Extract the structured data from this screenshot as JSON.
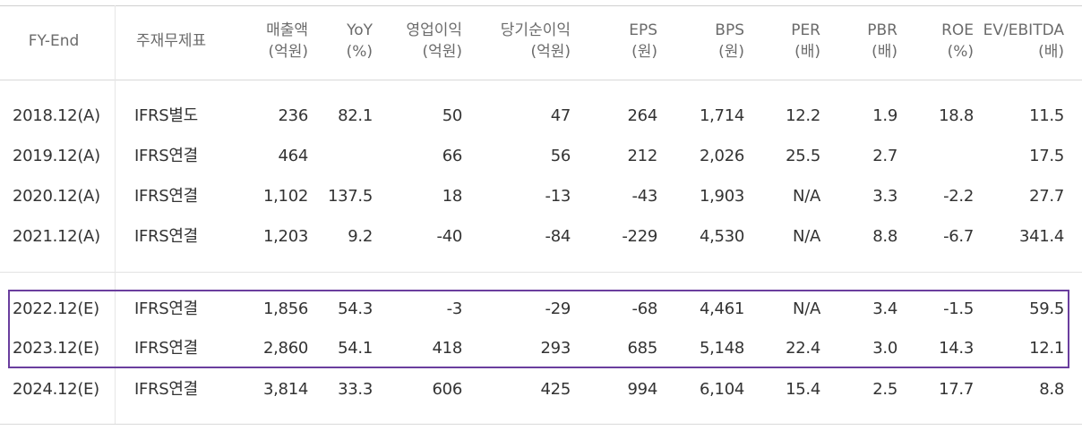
{
  "table": {
    "headers": [
      {
        "l1": "FY-End",
        "l2": ""
      },
      {
        "l1": "주재무제표",
        "l2": ""
      },
      {
        "l1": "매출액",
        "l2": "(억원)"
      },
      {
        "l1": "YoY",
        "l2": "(%)"
      },
      {
        "l1": "영업이익",
        "l2": "(억원)"
      },
      {
        "l1": "당기순이익",
        "l2": "(억원)"
      },
      {
        "l1": "EPS",
        "l2": "(원)"
      },
      {
        "l1": "BPS",
        "l2": "(원)"
      },
      {
        "l1": "PER",
        "l2": "(배)"
      },
      {
        "l1": "PBR",
        "l2": "(배)"
      },
      {
        "l1": "ROE",
        "l2": "(%)"
      },
      {
        "l1": "EV/EBITDA",
        "l2": "(배)"
      }
    ],
    "rows": [
      [
        "2018.12(A)",
        "IFRS별도",
        "236",
        "82.1",
        "50",
        "47",
        "264",
        "1,714",
        "12.2",
        "1.9",
        "18.8",
        "11.5"
      ],
      [
        "2019.12(A)",
        "IFRS연결",
        "464",
        "",
        "66",
        "56",
        "212",
        "2,026",
        "25.5",
        "2.7",
        "",
        "17.5"
      ],
      [
        "2020.12(A)",
        "IFRS연결",
        "1,102",
        "137.5",
        "18",
        "-13",
        "-43",
        "1,903",
        "N/A",
        "3.3",
        "-2.2",
        "27.7"
      ],
      [
        "2021.12(A)",
        "IFRS연결",
        "1,203",
        "9.2",
        "-40",
        "-84",
        "-229",
        "4,530",
        "N/A",
        "8.8",
        "-6.7",
        "341.4"
      ],
      [
        "2022.12(E)",
        "IFRS연결",
        "1,856",
        "54.3",
        "-3",
        "-29",
        "-68",
        "4,461",
        "N/A",
        "3.4",
        "-1.5",
        "59.5"
      ],
      [
        "2023.12(E)",
        "IFRS연결",
        "2,860",
        "54.1",
        "418",
        "293",
        "685",
        "5,148",
        "22.4",
        "3.0",
        "14.3",
        "12.1"
      ],
      [
        "2024.12(E)",
        "IFRS연결",
        "3,814",
        "33.3",
        "606",
        "425",
        "994",
        "6,104",
        "15.4",
        "2.5",
        "17.7",
        "8.8"
      ]
    ]
  },
  "colors": {
    "highlight_border": "#6a3e9e",
    "header_text": "#6b6b6b",
    "body_text": "#333333"
  }
}
